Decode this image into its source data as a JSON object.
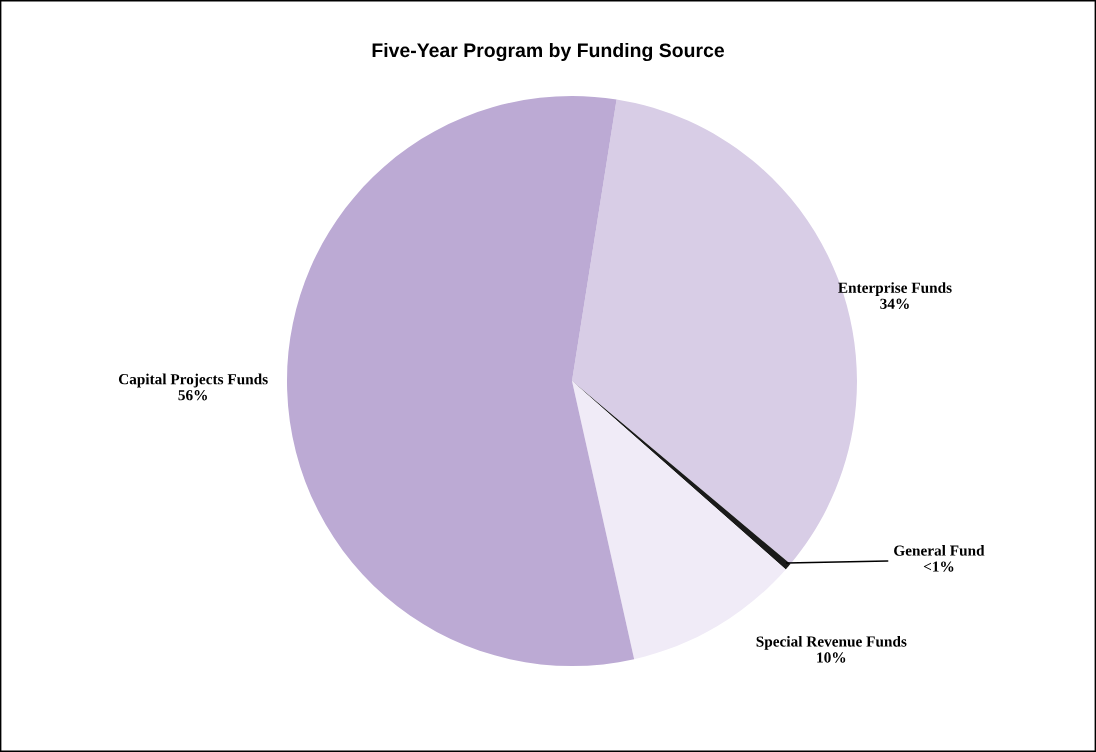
{
  "chart_data": {
    "type": "pie",
    "title": "Five-Year Program by Funding Source",
    "categories": [
      "Enterprise Funds",
      "General Fund",
      "Special Revenue Funds",
      "Capital Projects Funds"
    ],
    "values": [
      33.6,
      0.4,
      10,
      56
    ],
    "value_labels": [
      "34%",
      "<1%",
      "10%",
      "56%"
    ],
    "colors": [
      "#d8cde6",
      "#1a1a1a",
      "#f0ebf7",
      "#bcaad4"
    ],
    "legend": false
  }
}
